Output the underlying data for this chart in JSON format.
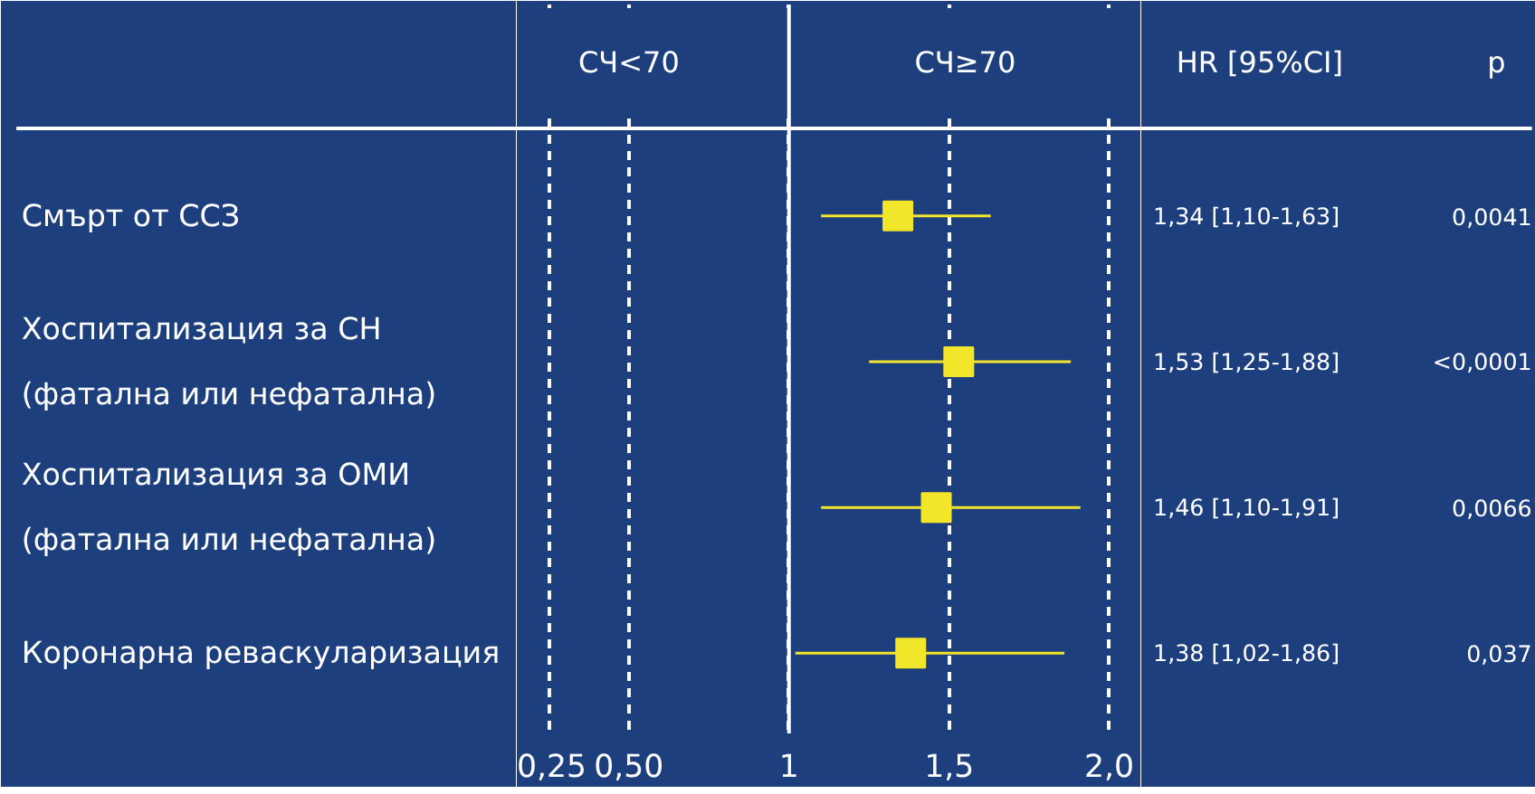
{
  "chart_data": {
    "type": "scatter",
    "orientation": "horizontal",
    "marker": "square",
    "categories": [
      "Смърт от ССЗ",
      "Хоспитализация за СН\n(фатална или нефатална)",
      "Хоспитализация за ОМИ\n(фатална или нефатална)",
      "Коронарна реваскуларизация"
    ],
    "values": [
      1.34,
      1.53,
      1.46,
      1.38
    ],
    "errors": [
      [
        1.1,
        1.63
      ],
      [
        1.25,
        1.88
      ],
      [
        1.1,
        1.91
      ],
      [
        1.02,
        1.86
      ]
    ],
    "color": "#f2e62a",
    "value_labels": [
      "1,34 [1,10-1,63]",
      "1,53 [1,25-1,88]",
      "1,46 [1,10-1,91]",
      "1,38 [1,02-1,86]"
    ],
    "xlim": [
      0.15,
      2.1
    ],
    "xticks": [
      {
        "value": 0.25,
        "label": "0,25"
      },
      {
        "value": 0.5,
        "label": "0,50"
      },
      1,
      {
        "value": 1.5,
        "label": "1,5"
      },
      {
        "value": 2.0,
        "label": "2,0"
      }
    ],
    "grid": "x",
    "ref_lines": [
      {
        "axis": "x",
        "value": 1,
        "color": "#ffffff",
        "line_style": "solid"
      }
    ],
    "annotations": [
      "СЧ<70",
      "СЧ≥70",
      "HR [95%CI]",
      "p",
      "0,0041",
      "<0,0001",
      "0,0066",
      "0,037"
    ]
  }
}
